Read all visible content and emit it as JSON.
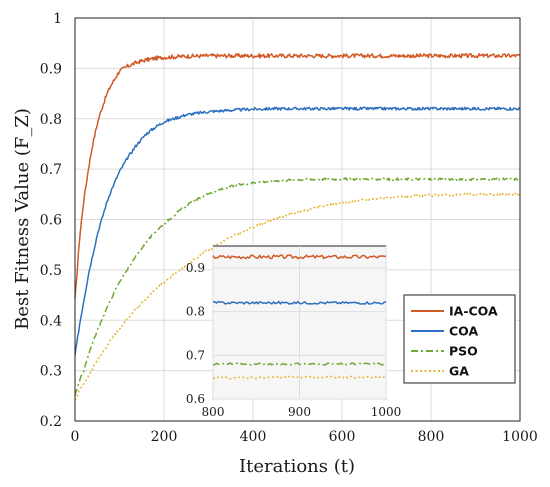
{
  "chart_data": {
    "type": "line",
    "xlabel": "Iterations (t)",
    "ylabel": "Best Fitness Value (F_Z)",
    "xlim": [
      0,
      1000
    ],
    "ylim": [
      0.2,
      1.0
    ],
    "x_ticks": [
      "0",
      "200",
      "400",
      "600",
      "800",
      "1000"
    ],
    "y_ticks": [
      "0.2",
      "0.3",
      "0.4",
      "0.5",
      "0.6",
      "0.7",
      "0.8",
      "0.9",
      "1"
    ],
    "grid": true,
    "legend_position": "right",
    "x": [
      0,
      10,
      20,
      30,
      40,
      50,
      60,
      70,
      80,
      90,
      100,
      120,
      140,
      160,
      180,
      200,
      250,
      300,
      350,
      400,
      450,
      500,
      550,
      600,
      650,
      700,
      750,
      800,
      850,
      900,
      950,
      1000
    ],
    "series": [
      {
        "name": "IA-COA",
        "color": "#d15a27",
        "style": "solid",
        "values": [
          0.44,
          0.56,
          0.64,
          0.7,
          0.75,
          0.79,
          0.82,
          0.845,
          0.865,
          0.88,
          0.895,
          0.905,
          0.912,
          0.917,
          0.92,
          0.922,
          0.924,
          0.925,
          0.925,
          0.925,
          0.925,
          0.925,
          0.925,
          0.925,
          0.925,
          0.925,
          0.925,
          0.925,
          0.925,
          0.925,
          0.925,
          0.925
        ]
      },
      {
        "name": "COA",
        "color": "#2e6fbf",
        "style": "solid",
        "values": [
          0.33,
          0.39,
          0.44,
          0.49,
          0.53,
          0.57,
          0.6,
          0.63,
          0.655,
          0.675,
          0.695,
          0.725,
          0.75,
          0.77,
          0.783,
          0.794,
          0.808,
          0.814,
          0.817,
          0.819,
          0.82,
          0.82,
          0.82,
          0.82,
          0.82,
          0.82,
          0.82,
          0.82,
          0.82,
          0.82,
          0.82,
          0.82
        ]
      },
      {
        "name": "PSO",
        "color": "#6fa832",
        "style": "dashdot",
        "values": [
          0.25,
          0.28,
          0.3,
          0.33,
          0.355,
          0.38,
          0.4,
          0.42,
          0.44,
          0.46,
          0.475,
          0.505,
          0.53,
          0.555,
          0.575,
          0.592,
          0.628,
          0.652,
          0.666,
          0.673,
          0.677,
          0.679,
          0.68,
          0.68,
          0.68,
          0.68,
          0.68,
          0.68,
          0.68,
          0.68,
          0.68,
          0.68
        ]
      },
      {
        "name": "GA",
        "color": "#e7b531",
        "style": "dotted",
        "values": [
          0.24,
          0.26,
          0.275,
          0.29,
          0.305,
          0.32,
          0.333,
          0.346,
          0.36,
          0.372,
          0.383,
          0.405,
          0.425,
          0.443,
          0.46,
          0.475,
          0.51,
          0.54,
          0.565,
          0.585,
          0.601,
          0.614,
          0.625,
          0.633,
          0.639,
          0.643,
          0.646,
          0.648,
          0.649,
          0.65,
          0.65,
          0.65
        ]
      }
    ],
    "inset": {
      "xlim": [
        800,
        1000
      ],
      "ylim": [
        0.6,
        0.95
      ],
      "x_ticks": [
        "800",
        "900",
        "1000"
      ],
      "y_ticks": [
        "0.6",
        "0.7",
        "0.8",
        "0.9"
      ]
    }
  }
}
